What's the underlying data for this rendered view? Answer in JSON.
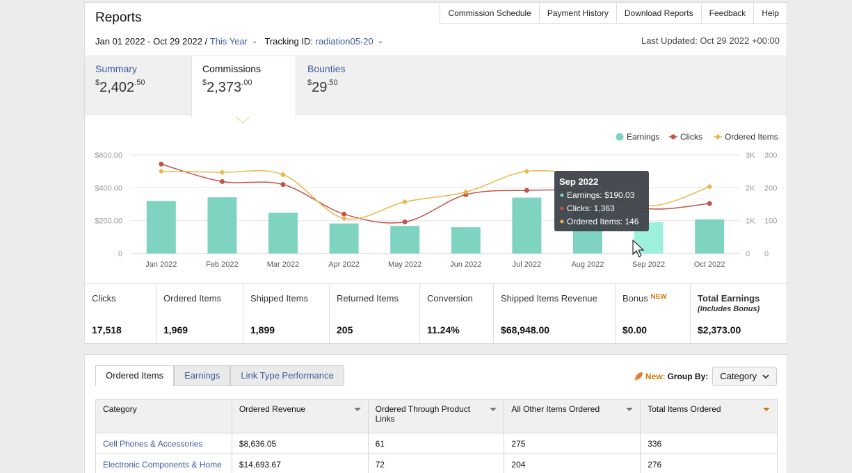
{
  "header": {
    "title": "Reports",
    "nav": [
      "Commission Schedule",
      "Payment History",
      "Download Reports",
      "Feedback",
      "Help"
    ],
    "date_range": "Jan 01 2022 - Oct 29 2022 /",
    "period": "This Year",
    "tracking_label": "Tracking ID:",
    "tracking_id": "radiation05-20",
    "last_updated": "Last Updated: Oct 29 2022 +00:00"
  },
  "summary_tabs": [
    {
      "label": "Summary",
      "currency": "$",
      "whole": "2,402",
      "cents": ".50"
    },
    {
      "label": "Commissions",
      "currency": "$",
      "whole": "2,373",
      "cents": ".00"
    },
    {
      "label": "Bounties",
      "currency": "$",
      "whole": "29",
      "cents": ".50"
    }
  ],
  "chart_data": {
    "type": "bar",
    "categories": [
      "Jan 2022",
      "Feb 2022",
      "Mar 2022",
      "Apr 2022",
      "May 2022",
      "Jun 2022",
      "Jul 2022",
      "Aug 2022",
      "Sep 2022",
      "Oct 2022"
    ],
    "legend": [
      "Earnings",
      "Clicks",
      "Ordered Items"
    ],
    "legend_position": "top-right",
    "colors": {
      "earnings": "#7fd4c1",
      "earnings_hover": "#9df0dd",
      "clicks": "#c0544a",
      "ordered": "#e8b84a"
    },
    "series": [
      {
        "name": "Earnings",
        "axis": "left",
        "values": [
          320,
          342,
          248,
          183,
          168,
          160,
          340,
          270,
          190.03,
          208
        ]
      },
      {
        "name": "Clicks",
        "axis": "right-1",
        "values": [
          2720,
          2190,
          2100,
          1200,
          960,
          1790,
          1920,
          1870,
          1363,
          1520
        ]
      },
      {
        "name": "Ordered Items",
        "axis": "right-2",
        "values": [
          250,
          247,
          240,
          107,
          157,
          187,
          250,
          230,
          146,
          203
        ]
      }
    ],
    "left_axis": {
      "ylim": [
        0,
        600
      ],
      "ticks": [
        "0",
        "$200.00",
        "$400.00",
        "$600.00"
      ]
    },
    "right_axis_1": {
      "ylim": [
        0,
        3000
      ],
      "ticks": [
        "0",
        "1K",
        "2K",
        "3K"
      ]
    },
    "right_axis_2": {
      "ylim": [
        0,
        300
      ],
      "ticks": [
        "0",
        "100",
        "200",
        "300"
      ]
    },
    "grid": true,
    "hover_index": 8,
    "tooltip": {
      "title": "Sep 2022",
      "lines": [
        "Earnings: $190.03",
        "Clicks: 1,363",
        "Ordered Items: 146"
      ]
    }
  },
  "metrics": [
    {
      "label": "Clicks",
      "value": "17,518"
    },
    {
      "label": "Ordered Items",
      "value": "1,969"
    },
    {
      "label": "Shipped Items",
      "value": "1,899"
    },
    {
      "label": "Returned Items",
      "value": "205"
    },
    {
      "label": "Conversion",
      "value": "11.24%"
    },
    {
      "label": "Shipped Items Revenue",
      "value": "$68,948.00"
    },
    {
      "label": "Bonus",
      "badge": "NEW",
      "value": "$0.00"
    },
    {
      "label": "Total Earnings",
      "sublabel": "(Includes Bonus)",
      "value": "$2,373.00"
    }
  ],
  "bottom": {
    "tabs": [
      "Ordered Items",
      "Earnings",
      "Link Type Performance"
    ],
    "group_new": "New:",
    "group_label": "Group By:",
    "group_value": "Category",
    "table": {
      "headers": [
        "Category",
        "Ordered Revenue",
        "Ordered Through Product Links",
        "All Other Items Ordered",
        "Total Items Ordered"
      ],
      "rows": [
        [
          "Cell Phones & Accessories",
          "$8,636.05",
          "61",
          "275",
          "336"
        ],
        [
          "Electronic Components & Home",
          "$14,693.67",
          "72",
          "204",
          "276"
        ]
      ]
    }
  }
}
